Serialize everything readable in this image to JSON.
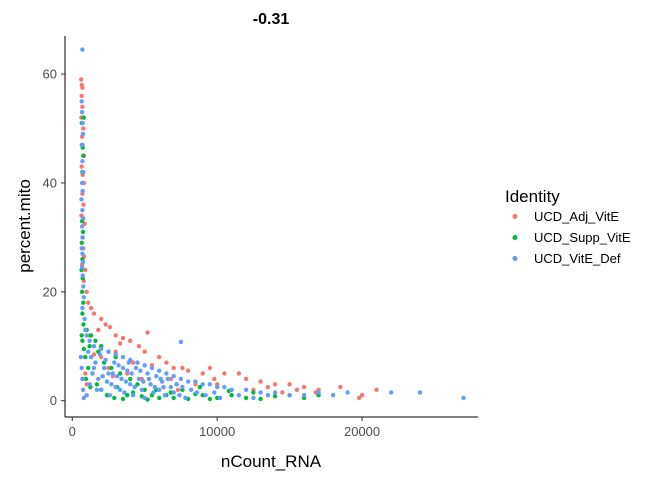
{
  "chart_data": {
    "type": "scatter",
    "title": "-0.31",
    "xlabel": "nCount_RNA",
    "ylabel": "percent.mito",
    "xlim": [
      -500,
      28000
    ],
    "ylim": [
      -3,
      67
    ],
    "x_ticks": [
      0,
      10000,
      20000
    ],
    "y_ticks": [
      0,
      20,
      40,
      60
    ],
    "grid": false,
    "legend": {
      "title": "Identity",
      "placement": "right"
    },
    "series": [
      {
        "name": "UCD_Adj_VitE",
        "color": "#F8766D",
        "points": [
          [
            620,
            59
          ],
          [
            660,
            58
          ],
          [
            700,
            57.5
          ],
          [
            650,
            56
          ],
          [
            700,
            54
          ],
          [
            630,
            52
          ],
          [
            760,
            50
          ],
          [
            680,
            48.5
          ],
          [
            720,
            47
          ],
          [
            800,
            45
          ],
          [
            650,
            43
          ],
          [
            720,
            41.5
          ],
          [
            820,
            40
          ],
          [
            700,
            38
          ],
          [
            780,
            36
          ],
          [
            640,
            34
          ],
          [
            860,
            32.5
          ],
          [
            700,
            30
          ],
          [
            760,
            28
          ],
          [
            820,
            26.5
          ],
          [
            680,
            25
          ],
          [
            900,
            24
          ],
          [
            1000,
            20
          ],
          [
            1100,
            18
          ],
          [
            1300,
            17
          ],
          [
            1500,
            16
          ],
          [
            2000,
            15
          ],
          [
            2300,
            14
          ],
          [
            1800,
            13
          ],
          [
            2600,
            13.5
          ],
          [
            3000,
            12
          ],
          [
            3500,
            11.5
          ],
          [
            4000,
            11
          ],
          [
            5200,
            12.5
          ],
          [
            4600,
            10
          ],
          [
            5000,
            9
          ],
          [
            6000,
            8
          ],
          [
            6500,
            7
          ],
          [
            7000,
            6
          ],
          [
            7600,
            6
          ],
          [
            8000,
            5.5
          ],
          [
            9000,
            5
          ],
          [
            9500,
            6
          ],
          [
            10500,
            5
          ],
          [
            11500,
            5
          ],
          [
            12000,
            4
          ],
          [
            13000,
            3.5
          ],
          [
            14000,
            3
          ],
          [
            15000,
            3
          ],
          [
            16000,
            2.5
          ],
          [
            17000,
            2
          ],
          [
            18500,
            2.5
          ],
          [
            20000,
            1
          ],
          [
            21000,
            2
          ],
          [
            19800,
            0.5
          ],
          [
            2000,
            8
          ],
          [
            3000,
            9
          ],
          [
            4200,
            7
          ],
          [
            5500,
            6.5
          ],
          [
            3300,
            10.5
          ],
          [
            1200,
            12
          ],
          [
            800,
            22
          ],
          [
            900,
            5
          ],
          [
            2500,
            6
          ],
          [
            1500,
            8.5
          ],
          [
            6800,
            4
          ],
          [
            8500,
            3
          ],
          [
            10000,
            3
          ],
          [
            11000,
            2
          ],
          [
            12500,
            2
          ],
          [
            14500,
            1.5
          ],
          [
            7300,
            2
          ],
          [
            1000,
            3
          ],
          [
            4800,
            4
          ],
          [
            2800,
            4.5
          ],
          [
            3800,
            5
          ],
          [
            9800,
            4
          ],
          [
            13500,
            2.5
          ],
          [
            15500,
            2
          ],
          [
            16800,
            1.5
          ]
        ]
      },
      {
        "name": "UCD_Supp_VitE",
        "color": "#00BA38",
        "points": [
          [
            800,
            52
          ],
          [
            660,
            51
          ],
          [
            720,
            46.5
          ],
          [
            760,
            45
          ],
          [
            700,
            42
          ],
          [
            680,
            33
          ],
          [
            740,
            31
          ],
          [
            660,
            29
          ],
          [
            700,
            26
          ],
          [
            640,
            24
          ],
          [
            720,
            22.5
          ],
          [
            680,
            20
          ],
          [
            760,
            18
          ],
          [
            700,
            16
          ],
          [
            780,
            14
          ],
          [
            1000,
            13
          ],
          [
            1300,
            12
          ],
          [
            1600,
            11
          ],
          [
            2000,
            10
          ],
          [
            2500,
            9
          ],
          [
            3000,
            8
          ],
          [
            1200,
            10
          ],
          [
            1800,
            9
          ],
          [
            2200,
            7
          ],
          [
            2700,
            6
          ],
          [
            3300,
            5
          ],
          [
            4000,
            4
          ],
          [
            4500,
            3
          ],
          [
            5000,
            2
          ],
          [
            5500,
            1
          ],
          [
            6000,
            0.5
          ],
          [
            6500,
            1
          ],
          [
            7000,
            0.5
          ],
          [
            8000,
            0.3
          ],
          [
            9000,
            1
          ],
          [
            10000,
            0.5
          ],
          [
            11000,
            1
          ],
          [
            12000,
            0.5
          ],
          [
            13000,
            0.3
          ],
          [
            15000,
            1
          ],
          [
            16000,
            0.5
          ],
          [
            17000,
            1
          ],
          [
            900,
            8
          ],
          [
            1100,
            6
          ],
          [
            1400,
            5
          ],
          [
            1700,
            3
          ],
          [
            2000,
            2
          ],
          [
            2400,
            1
          ],
          [
            2900,
            0.5
          ],
          [
            3500,
            0.3
          ],
          [
            4200,
            1.5
          ],
          [
            4800,
            0.8
          ],
          [
            5800,
            2
          ],
          [
            6800,
            1.5
          ],
          [
            7600,
            2
          ],
          [
            8500,
            1.2
          ],
          [
            9500,
            0.3
          ],
          [
            10800,
            1.8
          ],
          [
            12500,
            1.5
          ],
          [
            14000,
            0.8
          ],
          [
            700,
            11
          ],
          [
            800,
            9.5
          ],
          [
            650,
            12
          ],
          [
            950,
            4
          ],
          [
            1250,
            2.5
          ],
          [
            3100,
            2.5
          ],
          [
            3800,
            1
          ],
          [
            5200,
            0.2
          ],
          [
            7200,
            3
          ],
          [
            8800,
            2.5
          ]
        ]
      },
      {
        "name": "UCD_VitE_Def",
        "color": "#619CFF",
        "points": [
          [
            700,
            64.5
          ],
          [
            650,
            55
          ],
          [
            680,
            53
          ],
          [
            720,
            51
          ],
          [
            740,
            49
          ],
          [
            660,
            47
          ],
          [
            700,
            44
          ],
          [
            760,
            42
          ],
          [
            680,
            40
          ],
          [
            720,
            38.5
          ],
          [
            640,
            37
          ],
          [
            700,
            35
          ],
          [
            760,
            33.5
          ],
          [
            680,
            32
          ],
          [
            720,
            30
          ],
          [
            660,
            28
          ],
          [
            700,
            27
          ],
          [
            740,
            25.5
          ],
          [
            680,
            24.5
          ],
          [
            720,
            23
          ],
          [
            760,
            21
          ],
          [
            800,
            19
          ],
          [
            700,
            17
          ],
          [
            850,
            15
          ],
          [
            900,
            13
          ],
          [
            1000,
            12
          ],
          [
            1200,
            11
          ],
          [
            1500,
            10
          ],
          [
            2000,
            9.5
          ],
          [
            2500,
            9
          ],
          [
            3000,
            8.5
          ],
          [
            3500,
            8
          ],
          [
            4000,
            7.5
          ],
          [
            4500,
            7
          ],
          [
            5000,
            6.5
          ],
          [
            5500,
            6
          ],
          [
            6000,
            5.5
          ],
          [
            6500,
            5
          ],
          [
            7000,
            4.5
          ],
          [
            7500,
            4
          ],
          [
            8000,
            3.5
          ],
          [
            8500,
            3.5
          ],
          [
            9000,
            3
          ],
          [
            9500,
            3
          ],
          [
            10000,
            2.5
          ],
          [
            10500,
            2.5
          ],
          [
            11000,
            2
          ],
          [
            12000,
            2
          ],
          [
            13000,
            1.5
          ],
          [
            14000,
            1.5
          ],
          [
            15000,
            1
          ],
          [
            16000,
            1
          ],
          [
            17000,
            1.5
          ],
          [
            18000,
            1
          ],
          [
            19000,
            1.5
          ],
          [
            22000,
            1.5
          ],
          [
            24000,
            1.5
          ],
          [
            27000,
            0.5
          ],
          [
            7500,
            10.8
          ],
          [
            600,
            8
          ],
          [
            650,
            6
          ],
          [
            700,
            4
          ],
          [
            750,
            2
          ],
          [
            800,
            0.5
          ],
          [
            1000,
            1
          ],
          [
            1200,
            3
          ],
          [
            1400,
            5
          ],
          [
            1600,
            7
          ],
          [
            1800,
            4
          ],
          [
            2000,
            2
          ],
          [
            2200,
            6
          ],
          [
            2400,
            3.5
          ],
          [
            2600,
            1
          ],
          [
            2800,
            5
          ],
          [
            3000,
            2.5
          ],
          [
            3200,
            6.5
          ],
          [
            3400,
            4
          ],
          [
            3600,
            1.5
          ],
          [
            3800,
            5.5
          ],
          [
            4000,
            3
          ],
          [
            4200,
            1
          ],
          [
            4400,
            6
          ],
          [
            4600,
            4
          ],
          [
            4800,
            2
          ],
          [
            5000,
            0.5
          ],
          [
            5200,
            5
          ],
          [
            5400,
            3
          ],
          [
            5600,
            1.5
          ],
          [
            5800,
            4.5
          ],
          [
            6000,
            2
          ],
          [
            6200,
            3.5
          ],
          [
            6400,
            1
          ],
          [
            6600,
            4
          ],
          [
            6800,
            2.5
          ],
          [
            7000,
            1.5
          ],
          [
            7200,
            3
          ],
          [
            7400,
            1
          ],
          [
            7600,
            2.5
          ],
          [
            7800,
            0.5
          ],
          [
            8200,
            2
          ],
          [
            8600,
            1.5
          ],
          [
            9200,
            1
          ],
          [
            9800,
            1.5
          ],
          [
            10200,
            0.5
          ],
          [
            11500,
            1
          ],
          [
            12500,
            0.5
          ],
          [
            13500,
            1
          ],
          [
            1100,
            9
          ],
          [
            1300,
            8
          ],
          [
            1500,
            6
          ],
          [
            1700,
            2
          ],
          [
            1900,
            8.5
          ],
          [
            2100,
            4.5
          ],
          [
            2300,
            7.5
          ],
          [
            2500,
            5
          ],
          [
            2700,
            3
          ],
          [
            2900,
            7
          ],
          [
            3100,
            4.5
          ],
          [
            3300,
            2
          ],
          [
            3500,
            6
          ],
          [
            3700,
            3.5
          ],
          [
            3900,
            7
          ],
          [
            4100,
            5
          ],
          [
            4300,
            2.5
          ],
          [
            4700,
            5.5
          ],
          [
            4900,
            3.5
          ],
          [
            5300,
            4
          ],
          [
            5700,
            2.5
          ],
          [
            6100,
            4
          ],
          [
            6300,
            2.5
          ]
        ]
      }
    ]
  }
}
